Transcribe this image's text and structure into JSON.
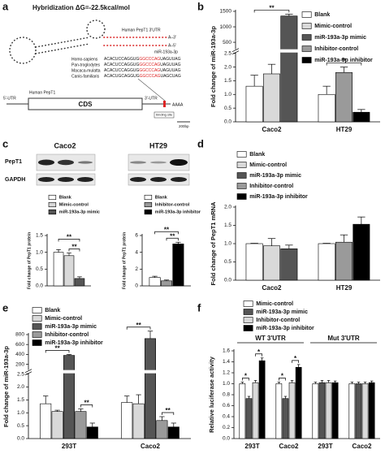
{
  "panel_labels": [
    "a",
    "b",
    "c",
    "d",
    "e",
    "f"
  ],
  "diagram": {
    "title": "Hybridization ΔG=-22.5kcal/mol",
    "utr_label": "Human PepT1 3'UTR",
    "end3": "A–3'",
    "mirna": "miR-193a-3p",
    "end5": "A–5'",
    "alignment": [
      {
        "species": "Homo-sapiens",
        "seq": [
          "ACACUCCAGGUG",
          "GGCCCAG",
          "UAGUUAG"
        ]
      },
      {
        "species": "Pan-troglodytes",
        "seq": [
          "ACACUCCAGGUG",
          "GGCCCAG",
          "UAGUUAG"
        ]
      },
      {
        "species": "Macaca-mulatta",
        "seq": [
          "ACACUCCAGGUG",
          "GGCCCAG",
          "UAGUUAG"
        ]
      },
      {
        "species": "Canis-familiaris",
        "seq": [
          "ACACUGCAGGUG",
          "GGCCCAG",
          "UAGCUAG"
        ]
      }
    ],
    "gene": {
      "utr5": "5'-UTR",
      "name": "Human PepT1",
      "cds": "CDS",
      "utr3": "3'-UTR",
      "polya": "AAAA",
      "site": "binding site",
      "scale": "200bp"
    }
  },
  "blot": {
    "cell_lines": [
      "Caco2",
      "HT29"
    ],
    "proteins": [
      "PepT1",
      "GAPDH"
    ]
  },
  "chart_data": [
    {
      "type": "bar",
      "ylabel": "Fold change of miR-193a-3p",
      "categories": [
        "Caco2",
        "HT29"
      ],
      "series": [
        {
          "name": "Blank",
          "color": "#ffffff",
          "values": [
            1.3,
            1.0
          ],
          "errors": [
            0.4,
            0.3
          ]
        },
        {
          "name": "Mimic-control",
          "color": "#d9d9d9",
          "values": [
            1.75,
            null
          ],
          "errors": [
            0.35,
            null
          ]
        },
        {
          "name": "miR-193a-3p mimic",
          "color": "#555555",
          "values": [
            1350,
            null
          ],
          "errors": [
            60,
            null
          ]
        },
        {
          "name": "Inhibitor-control",
          "color": "#9a9a9a",
          "values": [
            null,
            1.8
          ],
          "errors": [
            null,
            0.2
          ]
        },
        {
          "name": "miR-193a-3p inhibitor",
          "color": "#000000",
          "values": [
            null,
            0.35
          ],
          "errors": [
            null,
            0.1
          ]
        }
      ],
      "ylim": [
        0,
        1500
      ],
      "axis_break": [
        2.5,
        300
      ],
      "yticks": [
        {
          "value": 0,
          "label": "0.0"
        },
        0.5,
        {
          "value": 1,
          "label": "1.0"
        },
        1.5,
        {
          "value": 2,
          "label": "2.0"
        },
        2.5,
        500,
        1000,
        1500
      ],
      "annotations": [
        "**",
        "**"
      ],
      "legend": "upper right"
    },
    {
      "type": "bar",
      "ylabel": "Fold change of PepT1 protein",
      "categories": [
        null
      ],
      "series": [
        {
          "name": "Blank",
          "color": "#ffffff",
          "values": [
            1.0
          ],
          "errors": [
            0.08
          ]
        },
        {
          "name": "Mimic-control",
          "color": "#d9d9d9",
          "values": [
            0.9
          ],
          "errors": [
            0.08
          ]
        },
        {
          "name": "miR-193a-3p mimic",
          "color": "#555555",
          "values": [
            0.22
          ],
          "errors": [
            0.05
          ]
        }
      ],
      "ylim": [
        0,
        1.5
      ],
      "yticks": [
        {
          "value": 0,
          "label": "0.0"
        },
        0.5,
        {
          "value": 1,
          "label": "1.0"
        },
        1.5
      ],
      "annotations": [
        "**",
        "**"
      ],
      "legend": "above"
    },
    {
      "type": "bar",
      "ylabel": "Fold change of PepT1 protein",
      "categories": [
        null
      ],
      "series": [
        {
          "name": "Blank",
          "color": "#ffffff",
          "values": [
            1.0
          ],
          "errors": [
            0.15
          ]
        },
        {
          "name": "Inhibitor-control",
          "color": "#9a9a9a",
          "values": [
            0.6
          ],
          "errors": [
            0.1
          ]
        },
        {
          "name": "miR-193a-3p inhibitor",
          "color": "#000000",
          "values": [
            5.0
          ],
          "errors": [
            0.2
          ]
        }
      ],
      "ylim": [
        0,
        6
      ],
      "yticks": [
        0,
        2,
        4,
        6
      ],
      "annotations": [
        "**",
        "**"
      ],
      "legend": "above"
    },
    {
      "type": "bar",
      "ylabel": "Fold change of PepT1 mRNA",
      "categories": [
        "Caco2",
        "HT29"
      ],
      "series": [
        {
          "name": "Blank",
          "color": "#ffffff",
          "values": [
            1.0,
            1.0
          ],
          "errors": [
            0.01,
            0.01
          ]
        },
        {
          "name": "Mimic-control",
          "color": "#d9d9d9",
          "values": [
            0.94,
            null
          ],
          "errors": [
            0.2,
            null
          ]
        },
        {
          "name": "miR-193a-3p mimic",
          "color": "#555555",
          "values": [
            0.86,
            null
          ],
          "errors": [
            0.1,
            null
          ]
        },
        {
          "name": "Inhibitor-control",
          "color": "#9a9a9a",
          "values": [
            null,
            1.04
          ],
          "errors": [
            null,
            0.2
          ]
        },
        {
          "name": "miR-193a-3p inhibitor",
          "color": "#000000",
          "values": [
            null,
            1.53
          ],
          "errors": [
            null,
            0.2
          ]
        }
      ],
      "ylim": [
        0,
        2
      ],
      "yticks": [
        {
          "value": 0,
          "label": "0.0"
        },
        0.5,
        {
          "value": 1,
          "label": "1.0"
        },
        1.5,
        {
          "value": 2,
          "label": "2.0"
        }
      ],
      "legend": "upper left"
    },
    {
      "type": "bar",
      "ylabel": "Fold change of miR-193a-3p",
      "categories": [
        "293T",
        "Caco2"
      ],
      "series": [
        {
          "name": "Blank",
          "color": "#ffffff",
          "values": [
            1.35,
            1.4
          ],
          "errors": [
            0.3,
            0.25
          ]
        },
        {
          "name": "Mimic-control",
          "color": "#d9d9d9",
          "values": [
            1.05,
            1.35
          ],
          "errors": [
            0.05,
            0.35
          ]
        },
        {
          "name": "miR-193a-3p mimic",
          "color": "#555555",
          "values": [
            380,
            720
          ],
          "errors": [
            20,
            150
          ]
        },
        {
          "name": "Inhibitor-control",
          "color": "#9a9a9a",
          "values": [
            1.05,
            0.7
          ],
          "errors": [
            0.1,
            0.15
          ]
        },
        {
          "name": "miR-193a-3p inhibitor",
          "color": "#000000",
          "values": [
            0.45,
            0.45
          ],
          "errors": [
            0.15,
            0.15
          ]
        }
      ],
      "ylim": [
        0,
        800
      ],
      "axis_break": [
        2.5,
        100
      ],
      "yticks": [
        {
          "value": 0,
          "label": "0.0"
        },
        0.5,
        {
          "value": 1,
          "label": "1.0"
        },
        1.5,
        {
          "value": 2,
          "label": "2.0"
        },
        2.5,
        200,
        400,
        600,
        800
      ],
      "annotations": [
        "**",
        "**",
        "**",
        "**"
      ],
      "legend": "upper left"
    },
    {
      "type": "bar",
      "ylabel": "Relative luciferase activity",
      "categories": [
        "293T",
        "Caco2",
        "293T",
        "Caco2"
      ],
      "groups": [
        "WT 3'UTR",
        "Mut 3'UTR"
      ],
      "series": [
        {
          "name": "Mimic-control",
          "color": "#ffffff",
          "values": [
            1.0,
            1.0,
            1.0,
            1.0
          ],
          "errors": [
            0.03,
            0.03,
            0.03,
            0.03
          ]
        },
        {
          "name": "miR-193a-3p mimic",
          "color": "#555555",
          "values": [
            0.73,
            0.73,
            1.02,
            1.0
          ],
          "errors": [
            0.04,
            0.04,
            0.04,
            0.03
          ]
        },
        {
          "name": "Inhibitor-control",
          "color": "#d9d9d9",
          "values": [
            1.02,
            1.02,
            1.02,
            1.0
          ],
          "errors": [
            0.04,
            0.04,
            0.04,
            0.03
          ]
        },
        {
          "name": "miR-193a-3p inhibitor",
          "color": "#000000",
          "values": [
            1.42,
            1.3,
            1.02,
            1.02
          ],
          "errors": [
            0.05,
            0.05,
            0.03,
            0.03
          ]
        }
      ],
      "ylim": [
        0,
        1.6
      ],
      "yticks": [
        {
          "value": 0,
          "label": "0.0"
        },
        0.2,
        0.4,
        0.6,
        0.8,
        {
          "value": 1,
          "label": "1.0"
        },
        1.2,
        1.4,
        1.6
      ],
      "annotations": [
        "*",
        "*",
        "*",
        "*"
      ],
      "legend": "upper center"
    }
  ]
}
